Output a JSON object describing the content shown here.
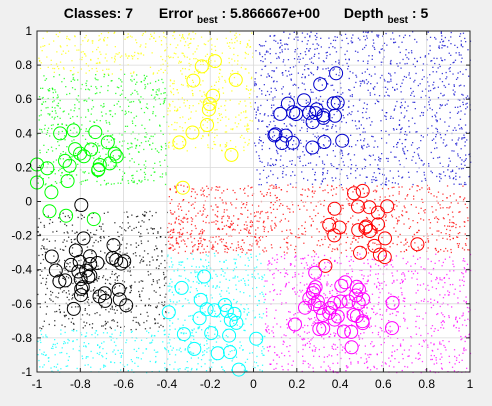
{
  "chart_data": {
    "type": "scatter",
    "title": {
      "classes_label": "Classes: 7",
      "error_label": "Error",
      "error_sub": "best",
      "error_value": ": 5.866667e+00",
      "depth_label": "Depth",
      "depth_sub": "best",
      "depth_value": ": 5"
    },
    "xlim": [
      -1,
      1
    ],
    "ylim": [
      -1,
      1
    ],
    "xticks": [
      -1,
      -0.8,
      -0.6,
      -0.4,
      -0.2,
      0,
      0.2,
      0.4,
      0.6,
      0.8,
      1
    ],
    "yticks": [
      -1,
      -0.8,
      -0.6,
      -0.4,
      -0.2,
      0,
      0.2,
      0.4,
      0.6,
      0.8,
      1
    ],
    "xtick_labels": [
      "-1",
      "-0.8",
      "-0.6",
      "-0.4",
      "-0.2",
      "0",
      "0.2",
      "0.4",
      "0.6",
      "0.8",
      "1"
    ],
    "ytick_labels": [
      "-1",
      "-0.8",
      "-0.6",
      "-0.4",
      "-0.2",
      "0",
      "0.2",
      "0.4",
      "0.6",
      "0.8",
      "1"
    ],
    "grid": true,
    "regions": [
      {
        "color": "#ffff00",
        "label": "yellow",
        "x": [
          -1,
          0
        ],
        "y": [
          0.75,
          1
        ]
      },
      {
        "color": "#ffff00",
        "label": "yellow",
        "x": [
          -0.4,
          0
        ],
        "y": [
          0.3,
          0.75
        ]
      },
      {
        "color": "#00ff00",
        "label": "green",
        "x": [
          -1,
          -0.4
        ],
        "y": [
          0.1,
          0.75
        ]
      },
      {
        "color": "#0000cc",
        "label": "blue",
        "x": [
          0,
          1
        ],
        "y": [
          0.1,
          1
        ]
      },
      {
        "color": "#ff0000",
        "label": "red",
        "x": [
          -0.4,
          1
        ],
        "y": [
          -0.3,
          0.1
        ]
      },
      {
        "color": "#ff0000",
        "label": "red",
        "x": [
          -0.4,
          0.05
        ],
        "y": [
          -0.3,
          -0.05
        ]
      },
      {
        "color": "#000000",
        "label": "black",
        "x": [
          -1,
          -0.4
        ],
        "y": [
          -0.75,
          -0.05
        ]
      },
      {
        "color": "#00ffff",
        "label": "cyan",
        "x": [
          -1,
          -0.4
        ],
        "y": [
          -1,
          -0.75
        ]
      },
      {
        "color": "#00ffff",
        "label": "cyan",
        "x": [
          -0.4,
          0.05
        ],
        "y": [
          -1,
          -0.3
        ]
      },
      {
        "color": "#ff00ff",
        "label": "magenta",
        "x": [
          0.05,
          1
        ],
        "y": [
          -1,
          -0.3
        ]
      }
    ],
    "clusters": [
      {
        "color": "#ffff00",
        "cx": -0.22,
        "cy": 0.55,
        "sx": 0.08,
        "sy": 0.2,
        "n": 12
      },
      {
        "color": "#00ff00",
        "cx": -0.78,
        "cy": 0.25,
        "sx": 0.12,
        "sy": 0.13,
        "n": 24
      },
      {
        "color": "#0000cc",
        "cx": 0.3,
        "cy": 0.48,
        "sx": 0.1,
        "sy": 0.1,
        "n": 24
      },
      {
        "color": "#ff0000",
        "cx": 0.55,
        "cy": -0.2,
        "sx": 0.13,
        "sy": 0.1,
        "n": 22
      },
      {
        "color": "#000000",
        "cx": -0.75,
        "cy": -0.45,
        "sx": 0.11,
        "sy": 0.13,
        "n": 32
      },
      {
        "color": "#00ffff",
        "cx": -0.18,
        "cy": -0.75,
        "sx": 0.12,
        "sy": 0.12,
        "n": 20
      },
      {
        "color": "#ff00ff",
        "cx": 0.37,
        "cy": -0.65,
        "sx": 0.12,
        "sy": 0.14,
        "n": 36
      }
    ],
    "points_per_region_density": 1400
  }
}
